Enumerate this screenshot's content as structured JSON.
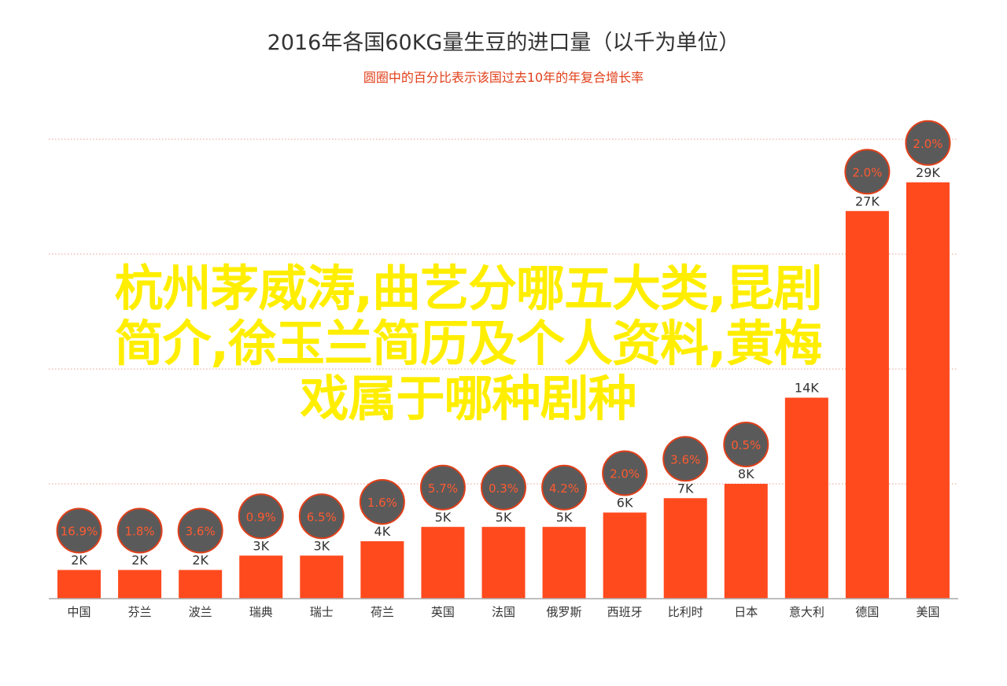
{
  "chart_data": {
    "type": "bar",
    "title": "2016年各国60KG量生豆的进口量（以千为单位）",
    "subtitle": "圆圈中的百分比表示该国过去10年的年复合增长率",
    "categories": [
      "中国",
      "芬兰",
      "波兰",
      "瑞典",
      "瑞士",
      "荷兰",
      "英国",
      "法国",
      "俄罗斯",
      "西班牙",
      "比利时",
      "日本",
      "意大利",
      "德国",
      "美国"
    ],
    "values": [
      2,
      2,
      2,
      3,
      3,
      4,
      5,
      5,
      5,
      6,
      7,
      8,
      14,
      27,
      29
    ],
    "value_labels": [
      "2K",
      "2K",
      "2K",
      "3K",
      "3K",
      "4K",
      "5K",
      "5K",
      "5K",
      "6K",
      "7K",
      "8K",
      "14K",
      "27K",
      "29K"
    ],
    "growth_rates": [
      "16.9%",
      "1.8%",
      "3.6%",
      "0.9%",
      "6.5%",
      "1.6%",
      "5.7%",
      "0.3%",
      "4.2%",
      "2.0%",
      "3.6%",
      "0.5%",
      "",
      "2.0%",
      "2.0%"
    ],
    "ylim": [
      0,
      32
    ],
    "xlabel": "",
    "ylabel": "",
    "grid": true,
    "colors": {
      "bar": "#ff4a1e",
      "circle_fill": "#5a5a5a",
      "circle_stroke": "#e0401a",
      "circle_text": "#ff5a30",
      "title": "#333333",
      "subtitle": "#e0401a",
      "grid": "#e8a090",
      "axis": "#aaaaaa"
    }
  },
  "overlay": {
    "lines": [
      "杭州茅威涛,曲艺分哪五大类,昆剧",
      "简介,徐玉兰简历及个人资料,黄梅",
      "戏属于哪种剧种"
    ]
  }
}
